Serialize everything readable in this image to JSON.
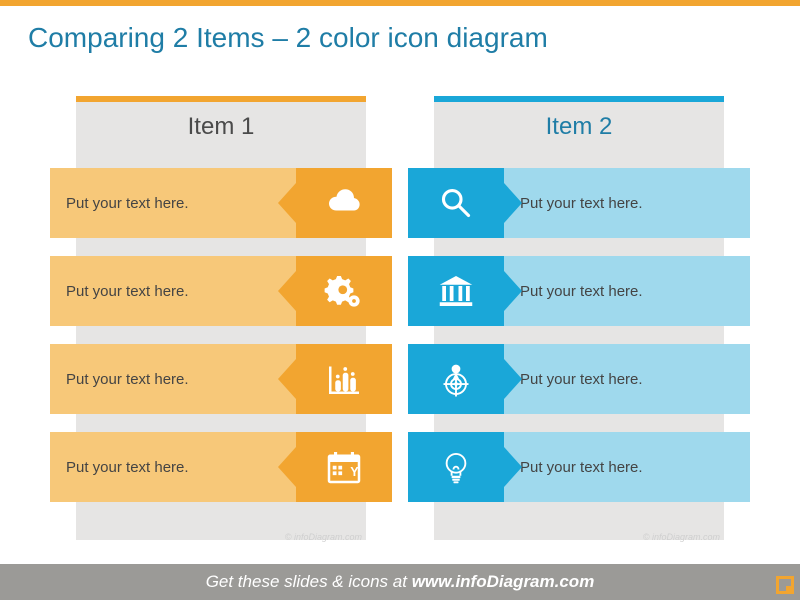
{
  "layout": {
    "top_bar_color": "#f2a530",
    "background": "#ffffff",
    "col_bg": "#e6e5e4",
    "footer_bg": "#9b9a97"
  },
  "title": {
    "text": "Comparing 2 Items – 2 color icon diagram",
    "color": "#1f7da6",
    "fontsize": 28
  },
  "columns": [
    {
      "side": "left",
      "header": "Item 1",
      "header_color": "#4a4a4a",
      "accent": "#f2a530",
      "text_bg": "#f7c879",
      "icon_bg": "#f2a530",
      "icon_fill": "#ffffff",
      "rows": [
        {
          "text": "Put your text here.",
          "icon": "cloud"
        },
        {
          "text": "Put your text here.",
          "icon": "gears"
        },
        {
          "text": "Put your text here.",
          "icon": "bar-chart"
        },
        {
          "text": "Put your text here.",
          "icon": "calendar"
        }
      ]
    },
    {
      "side": "right",
      "header": "Item 2",
      "header_color": "#1f7da6",
      "accent": "#1aa7d8",
      "text_bg": "#9fd9ed",
      "icon_bg": "#1aa7d8",
      "icon_fill": "#ffffff",
      "rows": [
        {
          "text": "Put your text here.",
          "icon": "magnifier"
        },
        {
          "text": "Put your text here.",
          "icon": "bank"
        },
        {
          "text": "Put your text here.",
          "icon": "target-pin"
        },
        {
          "text": "Put your text here.",
          "icon": "bulb"
        }
      ]
    }
  ],
  "footer": {
    "prefix": "Get these slides & icons at ",
    "bold": "www.infoDiagram.com"
  },
  "watermark": "© infoDiagram.com"
}
